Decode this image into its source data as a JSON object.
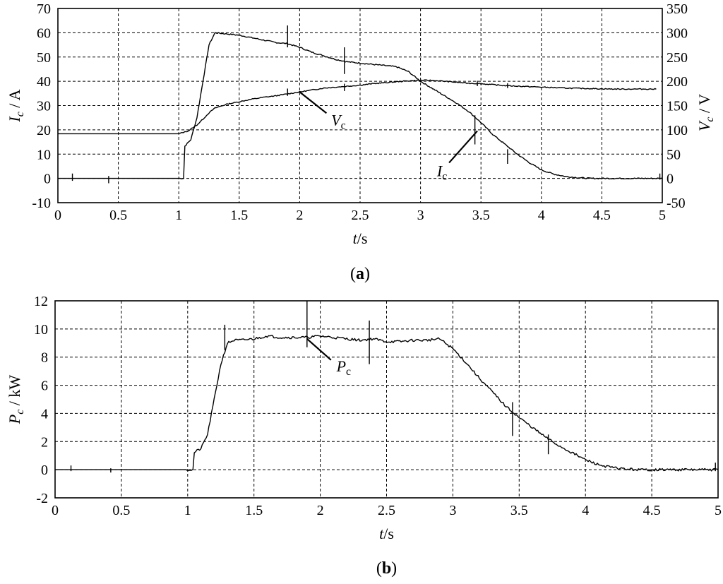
{
  "chart_data": [
    {
      "panel": "(a)",
      "type": "line",
      "xlabel": "t/s",
      "ylabel_left": "I_c / A",
      "ylabel_right": "V_c / V",
      "xlim": [
        0,
        5
      ],
      "ylim_left": [
        -10,
        70
      ],
      "ylim_right": [
        -50,
        350
      ],
      "xticks": [
        "0",
        "0.5",
        "1",
        "1.5",
        "2",
        "2.5",
        "3",
        "3.5",
        "4",
        "4.5",
        "5"
      ],
      "yticks_left": [
        "-10",
        "0",
        "10",
        "20",
        "30",
        "40",
        "50",
        "60",
        "70"
      ],
      "yticks_right": [
        "-50",
        "0",
        "50",
        "100",
        "150",
        "200",
        "250",
        "300",
        "350"
      ],
      "grid": true,
      "series": [
        {
          "name": "I_c",
          "axis": "left",
          "x": [
            0,
            0.12,
            0.44,
            1.04,
            1.045,
            1.1,
            1.15,
            1.2,
            1.25,
            1.3,
            1.4,
            1.5,
            1.6,
            1.7,
            1.8,
            1.9,
            2.0,
            2.1,
            2.2,
            2.3,
            2.4,
            2.5,
            2.6,
            2.7,
            2.8,
            2.9,
            3.0,
            3.1,
            3.2,
            3.3,
            3.4,
            3.5,
            3.6,
            3.7,
            3.8,
            3.9,
            4.0,
            4.1,
            4.2,
            4.3,
            4.4,
            4.5,
            4.6,
            4.7,
            4.8,
            4.9,
            5.0
          ],
          "y": [
            0,
            0,
            0,
            0,
            13,
            16,
            25,
            40,
            55,
            60,
            59.5,
            59,
            58,
            57,
            56,
            55.5,
            54,
            52,
            50.5,
            49,
            48,
            47.5,
            47,
            46.5,
            46,
            44,
            40,
            37,
            34,
            31,
            27.5,
            23,
            18,
            14,
            10,
            6.5,
            3.5,
            1.8,
            0.8,
            0.3,
            0,
            0,
            0,
            0,
            0,
            0,
            0
          ]
        },
        {
          "name": "V_c",
          "axis": "right",
          "x": [
            0,
            0.5,
            1.0,
            1.08,
            1.15,
            1.2,
            1.25,
            1.3,
            1.4,
            1.5,
            1.6,
            1.7,
            1.8,
            1.9,
            2.0,
            2.1,
            2.2,
            2.3,
            2.4,
            2.5,
            2.6,
            2.7,
            2.8,
            2.9,
            3.0,
            3.1,
            3.2,
            3.3,
            3.4,
            3.5,
            3.6,
            3.7,
            3.8,
            3.9,
            4.0,
            4.2,
            4.4,
            4.6,
            4.8,
            4.95
          ],
          "y": [
            92,
            92,
            92,
            98,
            110,
            122,
            135,
            145,
            153,
            158,
            163,
            167,
            170,
            174,
            178,
            182,
            186,
            188,
            190,
            192,
            195,
            197,
            199,
            201,
            202,
            202,
            200,
            198,
            196,
            195,
            193,
            191,
            190,
            189,
            188,
            186,
            185,
            184,
            184,
            184
          ]
        }
      ],
      "annotations": [
        {
          "text": "V_c",
          "series": "V_c",
          "x": 2.0,
          "y": 178
        },
        {
          "text": "I_c",
          "series": "I_c",
          "x": 3.47,
          "y": 21
        }
      ],
      "caption": "(a)"
    },
    {
      "panel": "(b)",
      "type": "line",
      "xlabel": "t/s",
      "ylabel": "P_c / kW",
      "xlim": [
        0,
        5
      ],
      "ylim": [
        -2,
        12
      ],
      "xticks": [
        "0",
        "0.5",
        "1",
        "1.5",
        "2",
        "2.5",
        "3",
        "3.5",
        "4",
        "4.5",
        "5"
      ],
      "yticks": [
        "-2",
        "0",
        "2",
        "4",
        "6",
        "8",
        "10",
        "12"
      ],
      "grid": true,
      "series": [
        {
          "name": "P_c",
          "x": [
            0,
            0.12,
            0.44,
            1.04,
            1.045,
            1.1,
            1.15,
            1.2,
            1.25,
            1.3,
            1.35,
            1.4,
            1.5,
            1.6,
            1.7,
            1.8,
            1.9,
            2.0,
            2.1,
            2.2,
            2.3,
            2.4,
            2.5,
            2.6,
            2.7,
            2.8,
            2.9,
            3.0,
            3.1,
            3.2,
            3.3,
            3.4,
            3.5,
            3.6,
            3.7,
            3.8,
            3.9,
            4.0,
            4.1,
            4.2,
            4.3,
            4.4,
            4.5,
            4.6,
            4.7,
            4.8,
            4.9,
            5.0
          ],
          "y": [
            0,
            0,
            0,
            0,
            1.2,
            1.5,
            2.5,
            5,
            7.5,
            9,
            9.2,
            9.2,
            9.3,
            9.5,
            9.4,
            9.4,
            9.4,
            9.5,
            9.4,
            9.3,
            9.2,
            9.3,
            9.1,
            9.1,
            9.2,
            9.2,
            9.3,
            8.6,
            7.6,
            6.5,
            5.5,
            4.5,
            3.7,
            3.0,
            2.3,
            1.7,
            1.2,
            0.7,
            0.35,
            0.15,
            0.05,
            0,
            0,
            0,
            0,
            0,
            0,
            0
          ]
        }
      ],
      "annotations": [
        {
          "text": "P_c",
          "series": "P_c",
          "x": 1.9,
          "y": 9.3
        }
      ],
      "caption": "(b)"
    }
  ]
}
